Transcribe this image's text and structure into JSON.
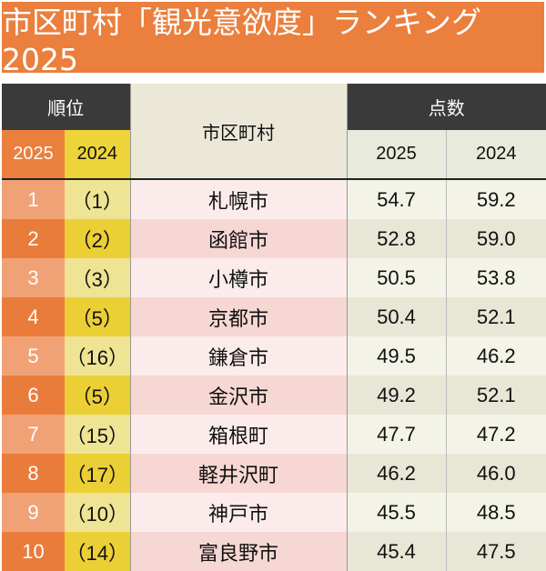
{
  "title": "市区町村「観光意欲度」ランキング2025",
  "headers": {
    "rank": "順位",
    "rank_2025": "2025",
    "rank_2024": "2024",
    "municipality": "市区町村",
    "score": "点数",
    "score_2025": "2025",
    "score_2024": "2024"
  },
  "rows": [
    {
      "rank_2025": "1",
      "rank_2024": "（1）",
      "name": "札幌市",
      "score_2025": "54.7",
      "score_2024": "59.2"
    },
    {
      "rank_2025": "2",
      "rank_2024": "（2）",
      "name": "函館市",
      "score_2025": "52.8",
      "score_2024": "59.0"
    },
    {
      "rank_2025": "3",
      "rank_2024": "（3）",
      "name": "小樽市",
      "score_2025": "50.5",
      "score_2024": "53.8"
    },
    {
      "rank_2025": "4",
      "rank_2024": "（5）",
      "name": "京都市",
      "score_2025": "50.4",
      "score_2024": "52.1"
    },
    {
      "rank_2025": "5",
      "rank_2024": "（16）",
      "name": "鎌倉市",
      "score_2025": "49.5",
      "score_2024": "46.2"
    },
    {
      "rank_2025": "6",
      "rank_2024": "（5）",
      "name": "金沢市",
      "score_2025": "49.2",
      "score_2024": "52.1"
    },
    {
      "rank_2025": "7",
      "rank_2024": "（15）",
      "name": "箱根町",
      "score_2025": "47.7",
      "score_2024": "47.2"
    },
    {
      "rank_2025": "8",
      "rank_2024": "（17）",
      "name": "軽井沢町",
      "score_2025": "46.2",
      "score_2024": "46.0"
    },
    {
      "rank_2025": "9",
      "rank_2024": "（10）",
      "name": "神戸市",
      "score_2025": "45.5",
      "score_2024": "48.5"
    },
    {
      "rank_2025": "10",
      "rank_2024": "（14）",
      "name": "富良野市",
      "score_2025": "45.4",
      "score_2024": "47.5"
    }
  ],
  "colors": {
    "accent_orange": "#ea7f3e",
    "accent_yellow": "#ecd43a",
    "header_dark": "#3b3a3a"
  }
}
